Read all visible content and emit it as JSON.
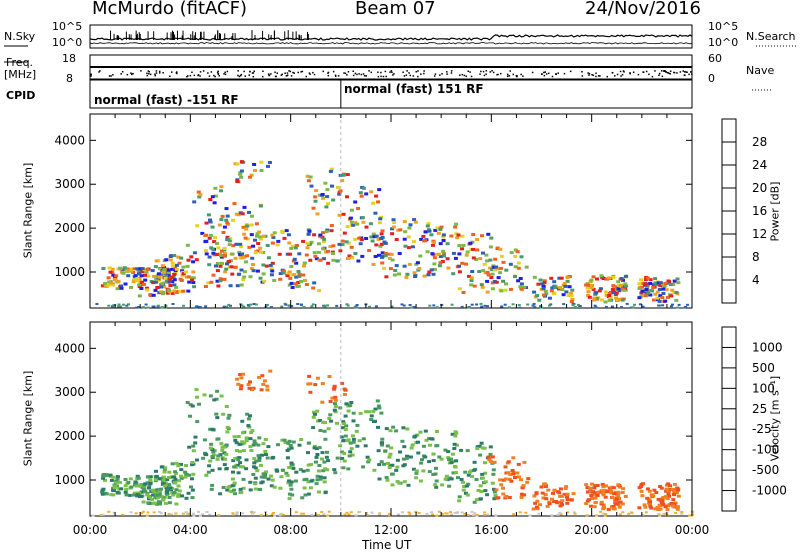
{
  "header": {
    "station": "McMurdo (fitACF)",
    "beam": "Beam 07",
    "date": "24/Nov/2016"
  },
  "strip_labels": {
    "nsky": "N.Sky",
    "nsearch": "N.Search",
    "freq_line1": "Freq.",
    "freq_line2": "[MHz]",
    "nave": "Nave",
    "cpid": "CPID",
    "noise_top": "10^5",
    "noise_bottom": "10^0",
    "freq_top": "18",
    "freq_bottom": "8",
    "nave_top": "60",
    "nave_bottom": "0"
  },
  "cpid_segments": [
    {
      "label": "normal (fast) -151 RF",
      "start_hour": 0,
      "end_hour": 10
    },
    {
      "label": "normal (fast) 151 RF",
      "start_hour": 10,
      "end_hour": 24
    }
  ],
  "chart_data": [
    {
      "type": "heatmap",
      "title": "Power",
      "ylabel": "Slant Range [km]",
      "xlabel": "Time UT",
      "xlim_hours": [
        0,
        24
      ],
      "ylim": [
        180,
        4600
      ],
      "x_ticks": [
        "00:00",
        "04:00",
        "08:00",
        "12:00",
        "16:00",
        "20:00",
        "00:00"
      ],
      "y_ticks": [
        1000,
        2000,
        3000,
        4000
      ],
      "colorbar": {
        "label": "Power [dB]",
        "ticks": [
          4,
          8,
          12,
          16,
          20,
          24,
          28
        ],
        "colors": [
          "#1e1ee6",
          "#2c5fb8",
          "#4a9a6e",
          "#7ab84a",
          "#e6d21e",
          "#f0a020",
          "#f06020",
          "#e61e1e"
        ]
      }
    },
    {
      "type": "heatmap",
      "title": "Velocity",
      "ylabel": "Slant Range [km]",
      "xlabel": "Time UT",
      "xlim_hours": [
        0,
        24
      ],
      "ylim": [
        180,
        4600
      ],
      "x_ticks": [
        "00:00",
        "04:00",
        "08:00",
        "12:00",
        "16:00",
        "20:00",
        "00:00"
      ],
      "y_ticks": [
        1000,
        2000,
        3000,
        4000
      ],
      "colorbar": {
        "label": "Velocity [m s⁻¹]",
        "ticks": [
          1000,
          500,
          100,
          25,
          -25,
          -100,
          -500,
          -1000
        ],
        "colors": [
          "#1e3cb4",
          "#2e7a6a",
          "#4a9a60",
          "#78c04a",
          "#c8c8c8",
          "#f0b030",
          "#f08020",
          "#f05020",
          "#e61e1e"
        ]
      }
    }
  ],
  "x_axis_title": "Time UT",
  "colors": {
    "blue": "#2c5fb8",
    "green": "#4a9a6e",
    "yellow": "#e6d21e",
    "orange": "#f08020",
    "red": "#e61e1e"
  }
}
